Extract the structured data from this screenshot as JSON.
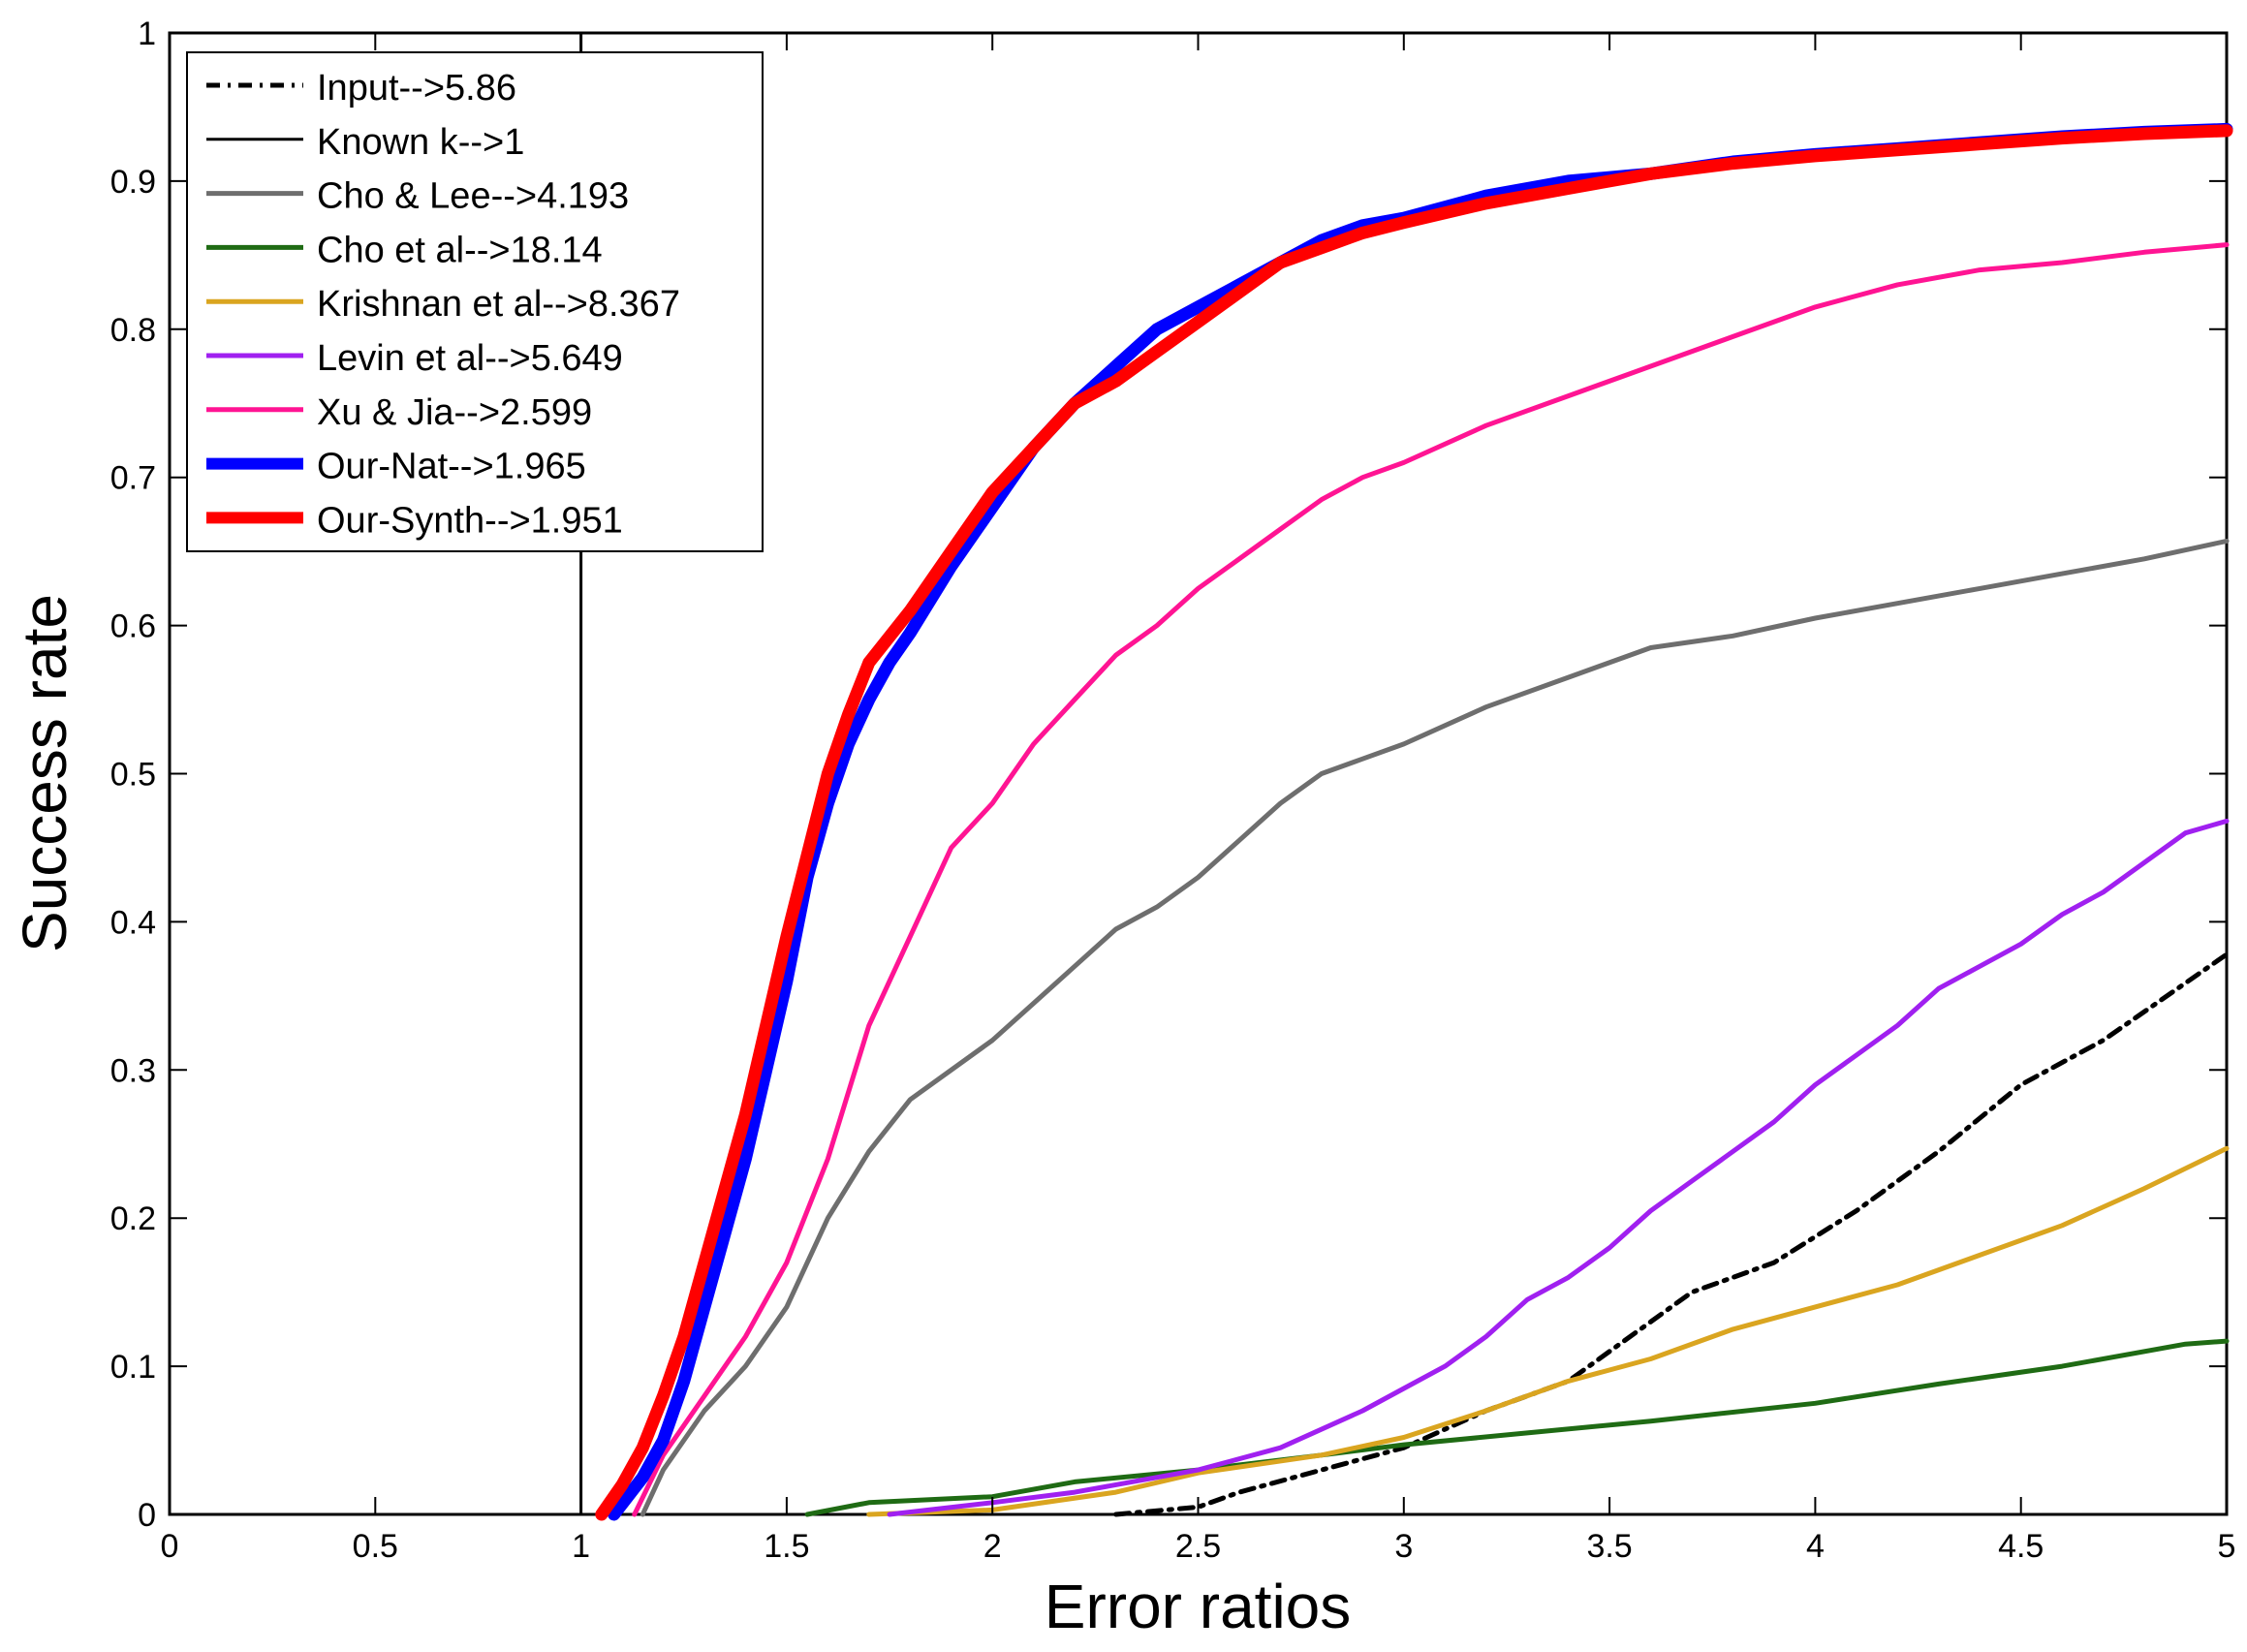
{
  "chart_data": {
    "type": "line",
    "title": "",
    "xlabel": "Error ratios",
    "ylabel": "Success rate",
    "xlim": [
      0,
      5
    ],
    "ylim": [
      0,
      1
    ],
    "xticks": [
      "0",
      "0.5",
      "1",
      "1.5",
      "2",
      "2.5",
      "3",
      "3.5",
      "4",
      "4.5",
      "5"
    ],
    "yticks": [
      "0",
      "0.1",
      "0.2",
      "0.3",
      "0.4",
      "0.5",
      "0.6",
      "0.7",
      "0.8",
      "0.9",
      "1"
    ],
    "grid": false,
    "legend_position": "top-left",
    "series": [
      {
        "name": "Input-->5.86",
        "color": "#000000",
        "style": "dashdot",
        "points": [
          [
            2.3,
            0
          ],
          [
            2.5,
            0.005
          ],
          [
            2.6,
            0.015
          ],
          [
            2.8,
            0.03
          ],
          [
            3.0,
            0.045
          ],
          [
            3.2,
            0.07
          ],
          [
            3.4,
            0.09
          ],
          [
            3.6,
            0.13
          ],
          [
            3.7,
            0.15
          ],
          [
            3.9,
            0.17
          ],
          [
            4.1,
            0.205
          ],
          [
            4.3,
            0.245
          ],
          [
            4.5,
            0.29
          ],
          [
            4.7,
            0.32
          ],
          [
            5.0,
            0.378
          ]
        ]
      },
      {
        "name": "Known k-->1",
        "color": "#000000",
        "style": "solid",
        "points": [
          [
            1.0,
            0
          ],
          [
            1.0,
            1.0
          ]
        ]
      },
      {
        "name": "Cho & Lee-->4.193",
        "color": "#6e6e6e",
        "style": "solid",
        "points": [
          [
            1.15,
            0
          ],
          [
            1.2,
            0.03
          ],
          [
            1.3,
            0.07
          ],
          [
            1.4,
            0.1
          ],
          [
            1.5,
            0.14
          ],
          [
            1.6,
            0.2
          ],
          [
            1.7,
            0.245
          ],
          [
            1.8,
            0.28
          ],
          [
            1.9,
            0.3
          ],
          [
            2.0,
            0.32
          ],
          [
            2.1,
            0.345
          ],
          [
            2.2,
            0.37
          ],
          [
            2.3,
            0.395
          ],
          [
            2.4,
            0.41
          ],
          [
            2.5,
            0.43
          ],
          [
            2.6,
            0.455
          ],
          [
            2.7,
            0.48
          ],
          [
            2.8,
            0.5
          ],
          [
            2.9,
            0.51
          ],
          [
            3.0,
            0.52
          ],
          [
            3.2,
            0.545
          ],
          [
            3.4,
            0.565
          ],
          [
            3.6,
            0.585
          ],
          [
            3.8,
            0.593
          ],
          [
            4.0,
            0.605
          ],
          [
            4.2,
            0.615
          ],
          [
            4.4,
            0.625
          ],
          [
            4.6,
            0.635
          ],
          [
            4.8,
            0.645
          ],
          [
            5.0,
            0.657
          ]
        ]
      },
      {
        "name": "Cho et al-->18.14",
        "color": "#1f6b14",
        "style": "solid",
        "points": [
          [
            1.55,
            0
          ],
          [
            1.7,
            0.008
          ],
          [
            2.0,
            0.012
          ],
          [
            2.2,
            0.022
          ],
          [
            2.5,
            0.03
          ],
          [
            2.8,
            0.04
          ],
          [
            3.0,
            0.047
          ],
          [
            3.3,
            0.055
          ],
          [
            3.6,
            0.063
          ],
          [
            4.0,
            0.075
          ],
          [
            4.3,
            0.088
          ],
          [
            4.6,
            0.1
          ],
          [
            4.9,
            0.115
          ],
          [
            5.0,
            0.117
          ]
        ]
      },
      {
        "name": "Krishnan et al-->8.367",
        "color": "#daa520",
        "style": "solid",
        "points": [
          [
            1.7,
            0
          ],
          [
            2.0,
            0.003
          ],
          [
            2.3,
            0.015
          ],
          [
            2.5,
            0.028
          ],
          [
            2.8,
            0.04
          ],
          [
            3.0,
            0.052
          ],
          [
            3.2,
            0.07
          ],
          [
            3.4,
            0.09
          ],
          [
            3.6,
            0.105
          ],
          [
            3.8,
            0.125
          ],
          [
            4.0,
            0.14
          ],
          [
            4.2,
            0.155
          ],
          [
            4.4,
            0.175
          ],
          [
            4.6,
            0.195
          ],
          [
            4.8,
            0.22
          ],
          [
            5.0,
            0.247
          ]
        ]
      },
      {
        "name": "Levin et al-->5.649",
        "color": "#a020f0",
        "style": "solid",
        "points": [
          [
            1.75,
            0
          ],
          [
            2.0,
            0.008
          ],
          [
            2.2,
            0.015
          ],
          [
            2.5,
            0.03
          ],
          [
            2.7,
            0.045
          ],
          [
            2.9,
            0.07
          ],
          [
            3.0,
            0.085
          ],
          [
            3.1,
            0.1
          ],
          [
            3.2,
            0.12
          ],
          [
            3.3,
            0.145
          ],
          [
            3.4,
            0.16
          ],
          [
            3.5,
            0.18
          ],
          [
            3.6,
            0.205
          ],
          [
            3.7,
            0.225
          ],
          [
            3.8,
            0.245
          ],
          [
            3.9,
            0.265
          ],
          [
            4.0,
            0.29
          ],
          [
            4.1,
            0.31
          ],
          [
            4.2,
            0.33
          ],
          [
            4.3,
            0.355
          ],
          [
            4.4,
            0.37
          ],
          [
            4.5,
            0.385
          ],
          [
            4.6,
            0.405
          ],
          [
            4.7,
            0.42
          ],
          [
            4.8,
            0.44
          ],
          [
            4.9,
            0.46
          ],
          [
            5.0,
            0.468
          ]
        ]
      },
      {
        "name": "Xu & Jia-->2.599",
        "color": "#ff1493",
        "style": "solid",
        "points": [
          [
            1.13,
            0
          ],
          [
            1.2,
            0.04
          ],
          [
            1.3,
            0.08
          ],
          [
            1.4,
            0.12
          ],
          [
            1.5,
            0.17
          ],
          [
            1.6,
            0.24
          ],
          [
            1.7,
            0.33
          ],
          [
            1.8,
            0.39
          ],
          [
            1.9,
            0.45
          ],
          [
            2.0,
            0.48
          ],
          [
            2.1,
            0.52
          ],
          [
            2.2,
            0.55
          ],
          [
            2.3,
            0.58
          ],
          [
            2.4,
            0.6
          ],
          [
            2.5,
            0.625
          ],
          [
            2.6,
            0.645
          ],
          [
            2.7,
            0.665
          ],
          [
            2.8,
            0.685
          ],
          [
            2.9,
            0.7
          ],
          [
            3.0,
            0.71
          ],
          [
            3.2,
            0.735
          ],
          [
            3.4,
            0.755
          ],
          [
            3.6,
            0.775
          ],
          [
            3.8,
            0.795
          ],
          [
            4.0,
            0.815
          ],
          [
            4.2,
            0.83
          ],
          [
            4.4,
            0.84
          ],
          [
            4.6,
            0.845
          ],
          [
            4.8,
            0.852
          ],
          [
            5.0,
            0.857
          ]
        ]
      },
      {
        "name": "Our-Nat-->1.965",
        "color": "#0000ff",
        "style": "solid",
        "width": "thick",
        "points": [
          [
            1.08,
            0
          ],
          [
            1.15,
            0.025
          ],
          [
            1.2,
            0.05
          ],
          [
            1.25,
            0.09
          ],
          [
            1.3,
            0.14
          ],
          [
            1.35,
            0.19
          ],
          [
            1.4,
            0.24
          ],
          [
            1.45,
            0.3
          ],
          [
            1.5,
            0.36
          ],
          [
            1.55,
            0.43
          ],
          [
            1.6,
            0.48
          ],
          [
            1.65,
            0.52
          ],
          [
            1.7,
            0.55
          ],
          [
            1.75,
            0.575
          ],
          [
            1.8,
            0.595
          ],
          [
            1.9,
            0.64
          ],
          [
            2.0,
            0.68
          ],
          [
            2.1,
            0.72
          ],
          [
            2.2,
            0.75
          ],
          [
            2.3,
            0.775
          ],
          [
            2.4,
            0.8
          ],
          [
            2.5,
            0.815
          ],
          [
            2.6,
            0.83
          ],
          [
            2.7,
            0.845
          ],
          [
            2.8,
            0.86
          ],
          [
            2.9,
            0.87
          ],
          [
            3.0,
            0.875
          ],
          [
            3.2,
            0.89
          ],
          [
            3.4,
            0.9
          ],
          [
            3.6,
            0.905
          ],
          [
            3.8,
            0.913
          ],
          [
            4.0,
            0.918
          ],
          [
            4.2,
            0.922
          ],
          [
            4.4,
            0.926
          ],
          [
            4.6,
            0.93
          ],
          [
            4.8,
            0.933
          ],
          [
            5.0,
            0.935
          ]
        ]
      },
      {
        "name": "Our-Synth-->1.951",
        "color": "#ff0000",
        "style": "solid",
        "width": "thick",
        "points": [
          [
            1.05,
            0
          ],
          [
            1.1,
            0.02
          ],
          [
            1.15,
            0.045
          ],
          [
            1.2,
            0.08
          ],
          [
            1.25,
            0.12
          ],
          [
            1.3,
            0.17
          ],
          [
            1.35,
            0.22
          ],
          [
            1.4,
            0.27
          ],
          [
            1.45,
            0.33
          ],
          [
            1.5,
            0.39
          ],
          [
            1.55,
            0.445
          ],
          [
            1.6,
            0.5
          ],
          [
            1.65,
            0.54
          ],
          [
            1.7,
            0.575
          ],
          [
            1.8,
            0.61
          ],
          [
            1.9,
            0.65
          ],
          [
            2.0,
            0.69
          ],
          [
            2.1,
            0.72
          ],
          [
            2.2,
            0.75
          ],
          [
            2.3,
            0.765
          ],
          [
            2.4,
            0.785
          ],
          [
            2.5,
            0.805
          ],
          [
            2.6,
            0.825
          ],
          [
            2.7,
            0.845
          ],
          [
            2.8,
            0.855
          ],
          [
            2.9,
            0.865
          ],
          [
            3.0,
            0.872
          ],
          [
            3.2,
            0.885
          ],
          [
            3.4,
            0.895
          ],
          [
            3.6,
            0.905
          ],
          [
            3.8,
            0.912
          ],
          [
            4.0,
            0.917
          ],
          [
            4.2,
            0.921
          ],
          [
            4.4,
            0.925
          ],
          [
            4.6,
            0.929
          ],
          [
            4.8,
            0.932
          ],
          [
            5.0,
            0.934
          ]
        ]
      }
    ]
  }
}
